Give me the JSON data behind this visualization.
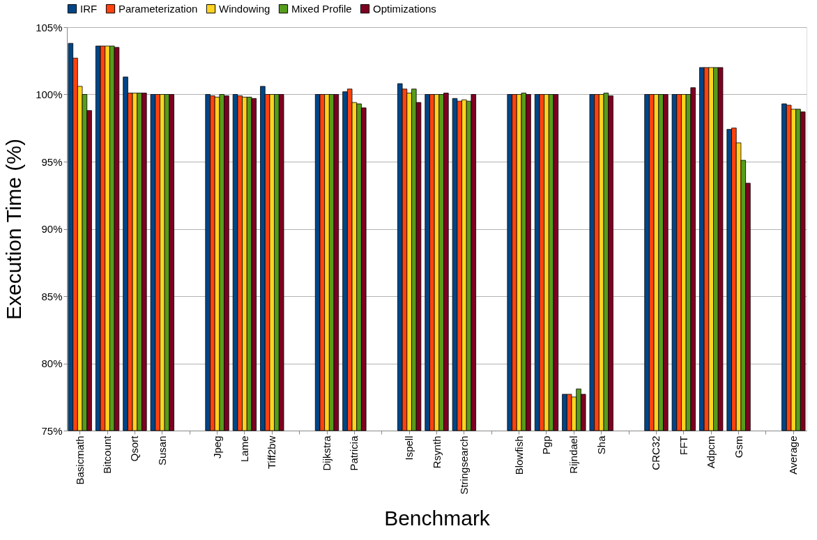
{
  "chart_data": {
    "type": "bar",
    "xlabel": "Benchmark",
    "ylabel": "Execution Time (%)",
    "categories": [
      "Basicmath",
      "Bitcount",
      "Qsort",
      "Susan",
      null,
      "Jpeg",
      "Lame",
      "Tiff2bw",
      null,
      "Dijkstra",
      "Patricia",
      null,
      "Ispell",
      "Rsynth",
      "Stringsearch",
      null,
      "Blowfish",
      "Pgp",
      "Rijndael",
      "Sha",
      null,
      "CRC32",
      "FFT",
      "Adpcm",
      "Gsm",
      null,
      "Average"
    ],
    "series": [
      {
        "name": "IRF",
        "color": "#004586",
        "values": [
          103.8,
          103.6,
          101.3,
          100.0,
          null,
          100.0,
          100.0,
          100.6,
          null,
          100.0,
          100.2,
          null,
          100.8,
          100.0,
          99.7,
          null,
          100.0,
          100.0,
          77.7,
          100.0,
          null,
          100.0,
          100.0,
          102.0,
          97.4,
          null,
          99.3
        ]
      },
      {
        "name": "Parameterization",
        "color": "#ff420e",
        "values": [
          102.7,
          103.6,
          100.1,
          100.0,
          null,
          99.9,
          99.9,
          100.0,
          null,
          100.0,
          100.4,
          null,
          100.4,
          100.0,
          99.5,
          null,
          100.0,
          100.0,
          77.7,
          100.0,
          null,
          100.0,
          100.0,
          102.0,
          97.5,
          null,
          99.2
        ]
      },
      {
        "name": "Windowing",
        "color": "#ffd320",
        "values": [
          100.6,
          103.6,
          100.1,
          100.0,
          null,
          99.8,
          99.8,
          100.0,
          null,
          100.0,
          99.4,
          null,
          100.1,
          100.0,
          99.6,
          null,
          100.0,
          100.0,
          77.5,
          100.0,
          null,
          100.0,
          100.0,
          102.0,
          96.4,
          null,
          98.9
        ]
      },
      {
        "name": "Mixed Profile",
        "color": "#579d1c",
        "values": [
          100.0,
          103.6,
          100.1,
          100.0,
          null,
          100.0,
          99.8,
          100.0,
          null,
          100.0,
          99.3,
          null,
          100.4,
          100.0,
          99.5,
          null,
          100.1,
          100.0,
          78.1,
          100.1,
          null,
          100.0,
          100.0,
          102.0,
          95.1,
          null,
          98.9
        ]
      },
      {
        "name": "Optimizations",
        "color": "#7e0021",
        "values": [
          98.8,
          103.5,
          100.1,
          100.0,
          null,
          99.9,
          99.7,
          100.0,
          null,
          100.0,
          99.0,
          null,
          99.4,
          100.1,
          100.0,
          null,
          100.0,
          100.0,
          77.7,
          99.9,
          null,
          100.0,
          100.5,
          102.0,
          93.4,
          null,
          98.7
        ]
      }
    ],
    "ylim": [
      75,
      105
    ],
    "yticks": [
      {
        "value": 75,
        "label": "75%"
      },
      {
        "value": 80,
        "label": "80%"
      },
      {
        "value": 85,
        "label": "85%"
      },
      {
        "value": 90,
        "label": "90%"
      },
      {
        "value": 95,
        "label": "95%"
      },
      {
        "value": 100,
        "label": "100%"
      },
      {
        "value": 105,
        "label": "105%"
      }
    ],
    "grid": "y",
    "legend": "top"
  }
}
